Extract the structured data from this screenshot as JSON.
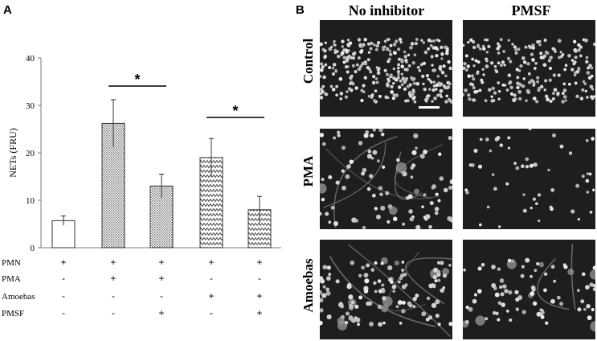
{
  "panel_a_label": "A",
  "panel_b_label": "B",
  "chart_data": {
    "type": "bar",
    "ylabel": "NETs (FRU)",
    "ylim": [
      0,
      40
    ],
    "yticks": [
      "0",
      "10",
      "20",
      "30",
      "40"
    ],
    "values": [
      5.7,
      26.2,
      13.0,
      19.0,
      8.0
    ],
    "errors": [
      1.0,
      5.0,
      2.5,
      4.0,
      2.8
    ],
    "patterns": [
      "none",
      "dots",
      "dots",
      "zigzag",
      "zigzag"
    ],
    "significance": [
      {
        "from": 1,
        "to": 2,
        "label": "*"
      },
      {
        "from": 3,
        "to": 4,
        "label": "*"
      }
    ],
    "conditions": [
      {
        "label": "PMN",
        "marks": [
          "+",
          "+",
          "+",
          "+",
          "+"
        ]
      },
      {
        "label": "PMA",
        "marks": [
          "-",
          "+",
          "+",
          "-",
          "-"
        ]
      },
      {
        "label": "Amoebas",
        "marks": [
          "-",
          "-",
          "-",
          "+",
          "+"
        ]
      },
      {
        "label": "PMSF",
        "marks": [
          "-",
          "-",
          "+",
          "-",
          "+"
        ]
      }
    ]
  },
  "micrographs": {
    "columns": [
      "No inhibitor",
      "PMSF"
    ],
    "rows": [
      "Control",
      "PMA",
      "Amoebas"
    ]
  }
}
